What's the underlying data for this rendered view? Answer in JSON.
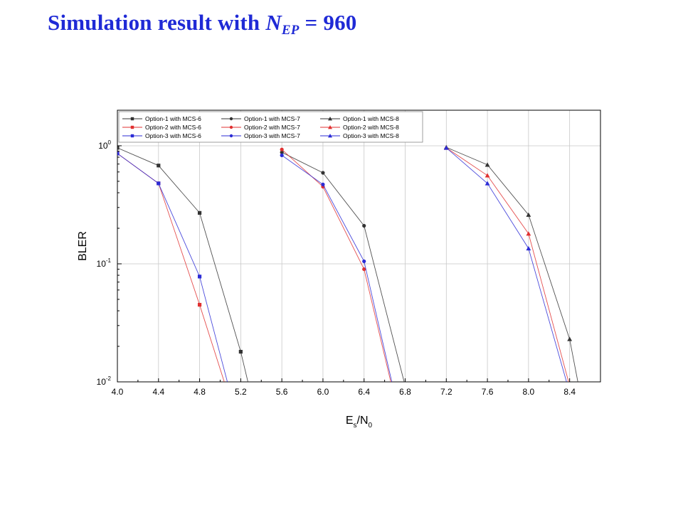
{
  "title": {
    "prefix": "Simulation result with ",
    "variable": "N",
    "subscript": "EP",
    "suffix": " = 960"
  },
  "colors": {
    "title": "#1f2ad6",
    "option1": "#333333",
    "option2": "#e03030",
    "option3": "#2b2bd6",
    "grid": "#c8c8c8"
  },
  "chart_data": {
    "type": "line",
    "xlabel": {
      "main": "E",
      "sub1": "s",
      "mid": "/N",
      "sub2": "0"
    },
    "ylabel": "BLER",
    "xlim": [
      4.0,
      8.7
    ],
    "ylim": [
      0.01,
      2.0
    ],
    "yscale": "log",
    "grid": true,
    "legend_position": "top-left",
    "x_ticks": [
      4.0,
      4.4,
      4.8,
      5.2,
      5.6,
      6.0,
      6.4,
      6.8,
      7.2,
      7.6,
      8.0,
      8.4
    ],
    "x_tick_labels": [
      "4.0",
      "4.4",
      "4.8",
      "5.2",
      "5.6",
      "6.0",
      "6.4",
      "6.8",
      "7.2",
      "7.6",
      "8.0",
      "8.4"
    ],
    "y_ticks": [
      {
        "value": 1,
        "base": "10",
        "exp": "0"
      },
      {
        "value": 0.1,
        "base": "10",
        "exp": "-1"
      },
      {
        "value": 0.01,
        "base": "10",
        "exp": "-2"
      }
    ],
    "series": [
      {
        "name": "Option-1 with MCS-6",
        "color": "#333333",
        "marker": "square",
        "x": [
          4.0,
          4.4,
          4.8,
          5.2,
          5.27
        ],
        "y": [
          0.96,
          0.68,
          0.27,
          0.018,
          0.01
        ]
      },
      {
        "name": "Option-2 with MCS-6",
        "color": "#e03030",
        "marker": "square",
        "x": [
          4.0,
          4.4,
          4.8,
          5.04
        ],
        "y": [
          0.86,
          0.48,
          0.045,
          0.01
        ]
      },
      {
        "name": "Option-3 with MCS-6",
        "color": "#2b2bd6",
        "marker": "square",
        "x": [
          4.0,
          4.4,
          4.8,
          5.07
        ],
        "y": [
          0.86,
          0.48,
          0.078,
          0.01
        ]
      },
      {
        "name": "Option-1 with MCS-7",
        "color": "#333333",
        "marker": "circle",
        "x": [
          5.6,
          6.0,
          6.4,
          6.79
        ],
        "y": [
          0.88,
          0.59,
          0.21,
          0.01
        ]
      },
      {
        "name": "Option-2 with MCS-7",
        "color": "#e03030",
        "marker": "circle",
        "x": [
          5.6,
          6.0,
          6.4,
          6.66
        ],
        "y": [
          0.93,
          0.45,
          0.09,
          0.01
        ]
      },
      {
        "name": "Option-3 with MCS-7",
        "color": "#2b2bd6",
        "marker": "circle",
        "x": [
          5.6,
          6.0,
          6.4,
          6.67
        ],
        "y": [
          0.83,
          0.47,
          0.105,
          0.01
        ]
      },
      {
        "name": "Option-1 with MCS-8",
        "color": "#333333",
        "marker": "triangle",
        "x": [
          7.2,
          7.6,
          8.0,
          8.4,
          8.48
        ],
        "y": [
          0.97,
          0.69,
          0.26,
          0.023,
          0.01
        ]
      },
      {
        "name": "Option-2 with MCS-8",
        "color": "#e03030",
        "marker": "triangle",
        "x": [
          7.2,
          7.6,
          8.0,
          8.39
        ],
        "y": [
          0.96,
          0.56,
          0.18,
          0.01
        ]
      },
      {
        "name": "Option-3 with MCS-8",
        "color": "#2b2bd6",
        "marker": "triangle",
        "x": [
          7.2,
          7.6,
          8.0,
          8.37
        ],
        "y": [
          0.96,
          0.48,
          0.135,
          0.01
        ]
      }
    ]
  }
}
